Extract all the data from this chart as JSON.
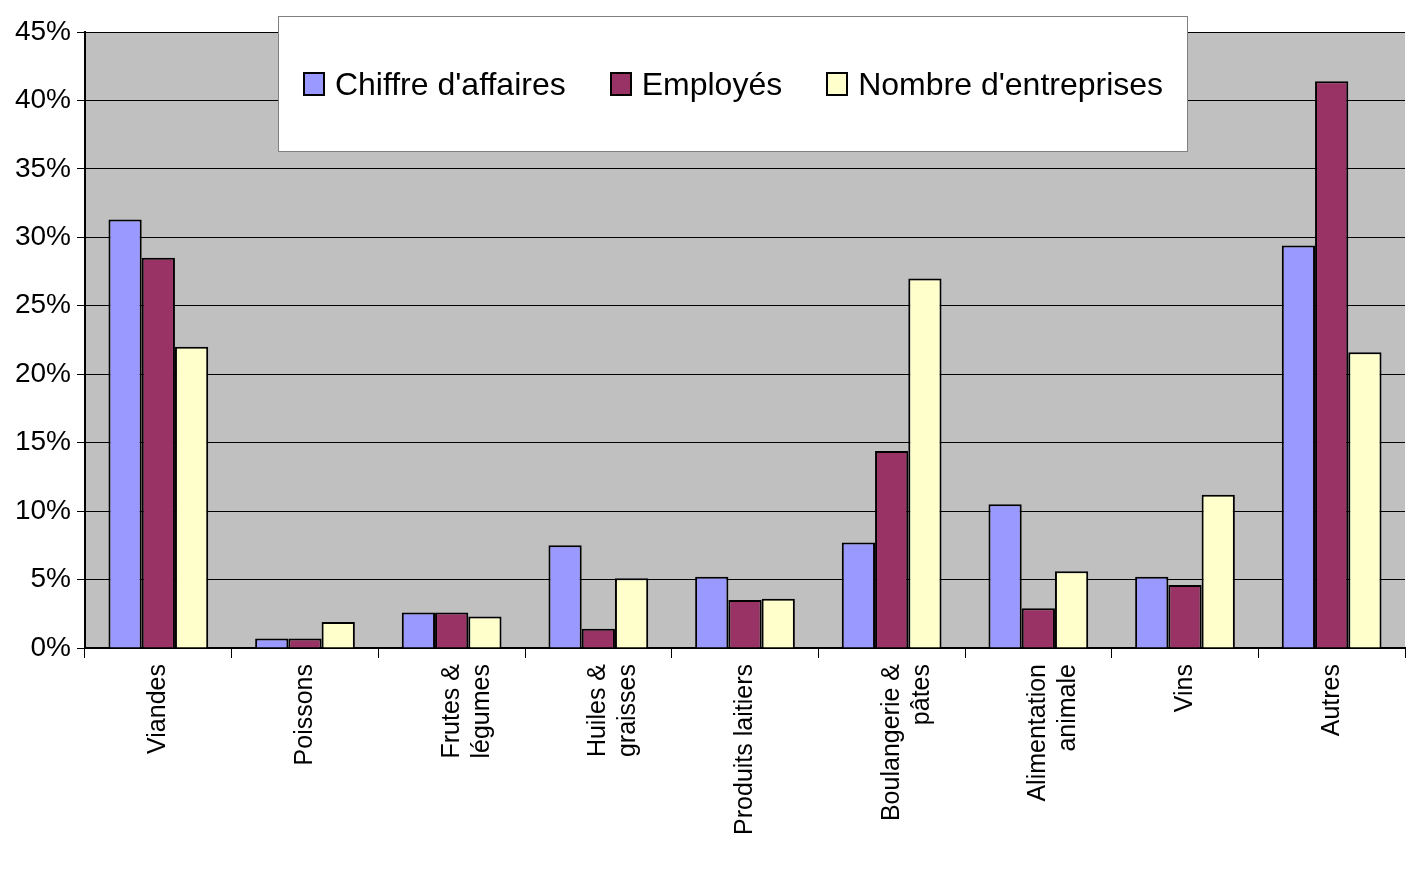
{
  "chart_data": {
    "type": "bar",
    "categories": [
      "Viandes",
      "Poissons",
      "Frutes &\nlégumes",
      "Huiles &\ngraisses",
      "Produits laitiers",
      "Boulangerie &\npâtes",
      "Alimentation\nanimale",
      "Vins",
      "Autres"
    ],
    "series": [
      {
        "name": "Chiffre d'affaires",
        "color": "#9999ff",
        "values": [
          31.3,
          0.7,
          2.6,
          7.5,
          5.2,
          7.7,
          10.5,
          5.2,
          29.4
        ]
      },
      {
        "name": "Employés",
        "color": "#993366",
        "values": [
          28.5,
          0.7,
          2.6,
          1.4,
          3.5,
          14.4,
          2.9,
          4.6,
          41.4
        ]
      },
      {
        "name": "Nombre d'entreprises",
        "color": "#ffffcc",
        "values": [
          22.0,
          1.9,
          2.3,
          5.1,
          3.6,
          27.0,
          5.6,
          11.2,
          21.6
        ]
      }
    ],
    "ylim": [
      0,
      45
    ],
    "yticks": [
      {
        "value": 0,
        "label": "0%"
      },
      {
        "value": 5,
        "label": "5%"
      },
      {
        "value": 10,
        "label": "10%"
      },
      {
        "value": 15,
        "label": "15%"
      },
      {
        "value": 20,
        "label": "20%"
      },
      {
        "value": 25,
        "label": "25%"
      },
      {
        "value": 30,
        "label": "30%"
      },
      {
        "value": 35,
        "label": "35%"
      },
      {
        "value": 40,
        "label": "40%"
      },
      {
        "value": 45,
        "label": "45%"
      }
    ],
    "grid": "y",
    "legend": "top"
  }
}
